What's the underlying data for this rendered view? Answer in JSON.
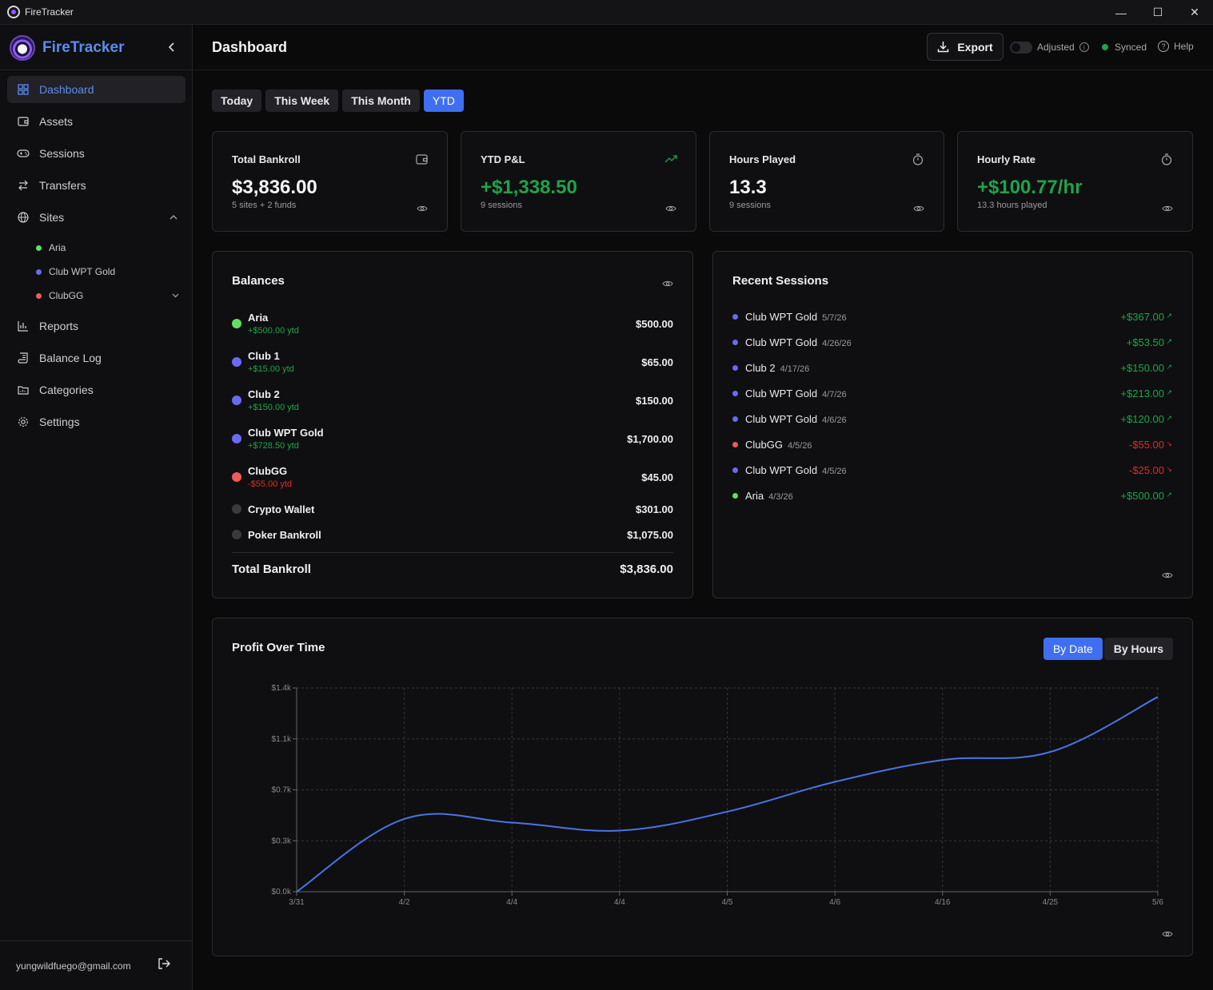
{
  "window": {
    "title": "FireTracker",
    "min": "—",
    "max": "☐",
    "close": "✕"
  },
  "sidebar": {
    "brand": "FireTracker",
    "items": [
      {
        "label": "Dashboard",
        "icon": "dashboard-icon",
        "active": true
      },
      {
        "label": "Assets",
        "icon": "wallet-icon"
      },
      {
        "label": "Sessions",
        "icon": "gamepad-icon"
      },
      {
        "label": "Transfers",
        "icon": "transfer-icon"
      },
      {
        "label": "Sites",
        "icon": "globe-icon"
      },
      {
        "label": "Reports",
        "icon": "bar-chart-icon"
      },
      {
        "label": "Balance Log",
        "icon": "scroll-icon"
      },
      {
        "label": "Categories",
        "icon": "folder-icon"
      },
      {
        "label": "Settings",
        "icon": "gear-icon"
      }
    ],
    "sites": [
      {
        "label": "Aria",
        "color": "#5fe05f"
      },
      {
        "label": "Club WPT Gold",
        "color": "#6a6af0"
      },
      {
        "label": "ClubGG",
        "color": "#ef5a5a"
      }
    ],
    "email": "yungwildfuego@gmail.com"
  },
  "header": {
    "title": "Dashboard",
    "export": "Export",
    "adjusted": "Adjusted",
    "synced": "Synced",
    "help": "Help"
  },
  "tabs": [
    "Today",
    "This Week",
    "This Month",
    "YTD"
  ],
  "stats": [
    {
      "title": "Total Bankroll",
      "value": "$3,836.00",
      "sub": "5 sites + 2 funds",
      "icon": "wallet-icon"
    },
    {
      "title": "YTD P&L",
      "value": "+$1,338.50",
      "sub": "9 sessions",
      "icon": "trending-up-icon"
    },
    {
      "title": "Hours Played",
      "value": "13.3",
      "sub": "9 sessions",
      "icon": "timer-icon"
    },
    {
      "title": "Hourly Rate",
      "value": "+$100.77/hr",
      "sub": "13.3 hours played",
      "icon": "timer-icon"
    }
  ],
  "balances": {
    "title": "Balances",
    "rows": [
      {
        "name": "Aria",
        "ytd": "+$500.00 ytd",
        "value": "$500.00",
        "color": "#5fe05f",
        "trend": "pos"
      },
      {
        "name": "Club 1",
        "ytd": "+$15.00 ytd",
        "value": "$65.00",
        "color": "#6a6af0",
        "trend": "pos"
      },
      {
        "name": "Club 2",
        "ytd": "+$150.00 ytd",
        "value": "$150.00",
        "color": "#6a6af0",
        "trend": "pos"
      },
      {
        "name": "Club WPT Gold",
        "ytd": "+$728.50 ytd",
        "value": "$1,700.00",
        "color": "#6a6af0",
        "trend": "pos"
      },
      {
        "name": "ClubGG",
        "ytd": "-$55.00 ytd",
        "value": "$45.00",
        "color": "#ef5a5a",
        "trend": "neg"
      },
      {
        "name": "Crypto Wallet",
        "ytd": "",
        "value": "$301.00",
        "color": "#3a3a3e"
      },
      {
        "name": "Poker Bankroll",
        "ytd": "",
        "value": "$1,075.00",
        "color": "#3a3a3e"
      }
    ],
    "total_label": "Total Bankroll",
    "total_value": "$3,836.00"
  },
  "recent_sessions": {
    "title": "Recent Sessions",
    "rows": [
      {
        "site": "Club WPT Gold",
        "date": "5/7/26",
        "amount": "+$367.00",
        "color": "#6a6af0",
        "trend": "pos"
      },
      {
        "site": "Club WPT Gold",
        "date": "4/26/26",
        "amount": "+$53.50",
        "color": "#6a6af0",
        "trend": "pos"
      },
      {
        "site": "Club 2",
        "date": "4/17/26",
        "amount": "+$150.00",
        "color": "#6a6af0",
        "trend": "pos"
      },
      {
        "site": "Club WPT Gold",
        "date": "4/7/26",
        "amount": "+$213.00",
        "color": "#6a6af0",
        "trend": "pos"
      },
      {
        "site": "Club WPT Gold",
        "date": "4/6/26",
        "amount": "+$120.00",
        "color": "#6a6af0",
        "trend": "pos"
      },
      {
        "site": "ClubGG",
        "date": "4/5/26",
        "amount": "-$55.00",
        "color": "#ef5a5a",
        "trend": "neg"
      },
      {
        "site": "Club WPT Gold",
        "date": "4/5/26",
        "amount": "-$25.00",
        "color": "#6a6af0",
        "trend": "neg"
      },
      {
        "site": "Aria",
        "date": "4/3/26",
        "amount": "+$500.00",
        "color": "#5fe05f",
        "trend": "pos"
      }
    ]
  },
  "profit_chart": {
    "title": "Profit Over Time",
    "buttons": [
      "By Date",
      "By Hours"
    ]
  },
  "chart_data": {
    "type": "line",
    "x": [
      "3/31",
      "4/2",
      "4/4",
      "4/4",
      "4/5",
      "4/6",
      "4/16",
      "4/25",
      "5/6"
    ],
    "y_ticks": [
      "$0.0k",
      "$0.3k",
      "$0.7k",
      "$1.1k",
      "$1.4k"
    ],
    "ylim": [
      0,
      1400
    ],
    "grid": true,
    "series": [
      {
        "values": [
          0,
          500,
          475,
          420,
          550,
          755,
          905,
          960,
          1338.5
        ],
        "color": "#4a73e8"
      }
    ]
  }
}
